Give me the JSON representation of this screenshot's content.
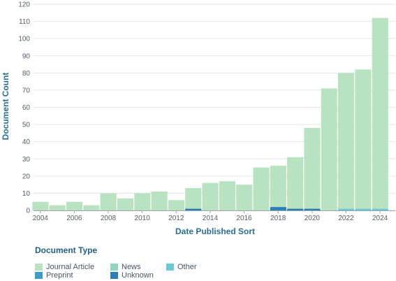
{
  "chart_data": {
    "type": "bar",
    "stacked": true,
    "xlabel": "Date Published Sort",
    "ylabel": "Document Count",
    "ylim": [
      0,
      120
    ],
    "yticks": [
      0,
      10,
      20,
      30,
      40,
      50,
      60,
      70,
      80,
      90,
      100,
      110,
      120
    ],
    "xlim": [
      2003.6,
      2024.9
    ],
    "xticks": [
      2004,
      2006,
      2008,
      2010,
      2012,
      2014,
      2016,
      2018,
      2020,
      2022,
      2024
    ],
    "grid": true,
    "years": [
      2004,
      2005,
      2006,
      2007,
      2008,
      2009,
      2010,
      2011,
      2012,
      2013,
      2014,
      2015,
      2016,
      2017,
      2018,
      2019,
      2020,
      2021,
      2022,
      2023,
      2024
    ],
    "series": [
      {
        "name": "Journal Article",
        "color": "#b9e3c0",
        "values": [
          5,
          3,
          5,
          3,
          10,
          7,
          10,
          11,
          6,
          12,
          16,
          17,
          15,
          25,
          24,
          30,
          47,
          71,
          79,
          81,
          111
        ]
      },
      {
        "name": "News",
        "color": "#8fd6bc",
        "values": [
          0,
          0,
          0,
          0,
          0,
          0,
          0,
          0,
          0,
          0,
          0,
          0,
          0,
          0,
          0,
          0,
          0,
          0,
          0,
          0,
          0
        ]
      },
      {
        "name": "Other",
        "color": "#6cc7d6",
        "values": [
          0,
          0,
          0,
          0,
          0,
          0,
          0,
          0,
          0,
          0,
          0,
          0,
          0,
          0,
          0,
          0,
          0,
          0,
          1,
          1,
          1
        ]
      },
      {
        "name": "Preprint",
        "color": "#3e9cc7",
        "values": [
          0,
          0,
          0,
          0,
          0,
          0,
          0,
          0,
          0,
          0,
          0,
          0,
          0,
          0,
          0,
          0,
          0,
          0,
          0,
          0,
          0
        ]
      },
      {
        "name": "Unknown",
        "color": "#2a7fb4",
        "values": [
          0,
          0,
          0,
          0,
          0,
          0,
          0,
          0,
          0,
          1,
          0,
          0,
          0,
          0,
          2,
          1,
          1,
          0,
          0,
          0,
          0
        ]
      }
    ],
    "legend": {
      "title": "Document Type",
      "placement": "bottom-left",
      "items": [
        "Journal Article",
        "News",
        "Other",
        "Preprint",
        "Unknown"
      ]
    }
  }
}
